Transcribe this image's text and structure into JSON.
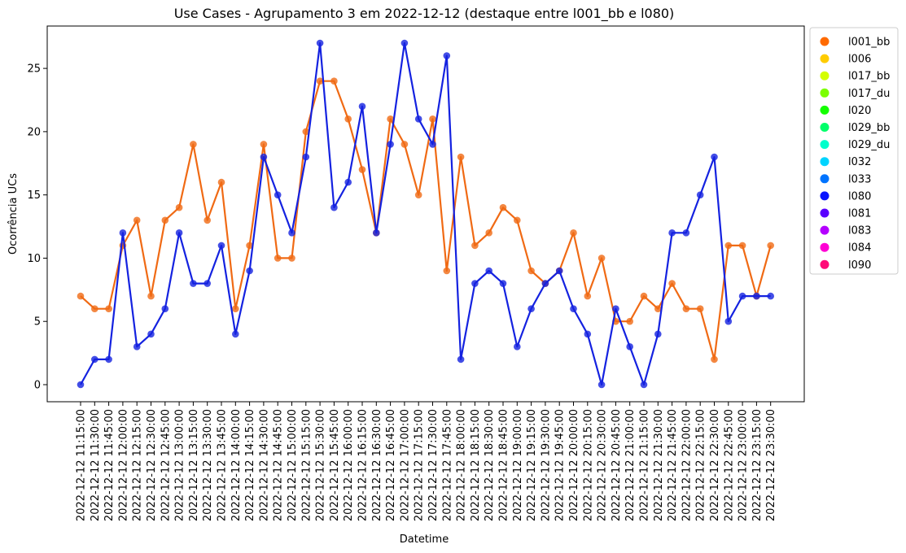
{
  "chart_data": {
    "type": "line",
    "title": "Use Cases - Agrupamento 3 em 2022-12-12 (destaque entre l001_bb e l080)",
    "xlabel": "Datetime",
    "ylabel": "Ocorrência UCs",
    "ylim": [
      -1.35,
      28.35
    ],
    "yticks": [
      0,
      5,
      10,
      15,
      20,
      25
    ],
    "grid": false,
    "legend_position": "outside-right",
    "categories": [
      "2022-12-12 11:15:00",
      "2022-12-12 11:30:00",
      "2022-12-12 11:45:00",
      "2022-12-12 12:00:00",
      "2022-12-12 12:15:00",
      "2022-12-12 12:30:00",
      "2022-12-12 12:45:00",
      "2022-12-12 13:00:00",
      "2022-12-12 13:15:00",
      "2022-12-12 13:30:00",
      "2022-12-12 13:45:00",
      "2022-12-12 14:00:00",
      "2022-12-12 14:15:00",
      "2022-12-12 14:30:00",
      "2022-12-12 14:45:00",
      "2022-12-12 15:00:00",
      "2022-12-12 15:15:00",
      "2022-12-12 15:30:00",
      "2022-12-12 15:45:00",
      "2022-12-12 16:00:00",
      "2022-12-12 16:15:00",
      "2022-12-12 16:30:00",
      "2022-12-12 16:45:00",
      "2022-12-12 17:00:00",
      "2022-12-12 17:15:00",
      "2022-12-12 17:30:00",
      "2022-12-12 17:45:00",
      "2022-12-12 18:00:00",
      "2022-12-12 18:15:00",
      "2022-12-12 18:30:00",
      "2022-12-12 18:45:00",
      "2022-12-12 19:00:00",
      "2022-12-12 19:15:00",
      "2022-12-12 19:30:00",
      "2022-12-12 19:45:00",
      "2022-12-12 20:00:00",
      "2022-12-12 20:15:00",
      "2022-12-12 20:30:00",
      "2022-12-12 20:45:00",
      "2022-12-12 21:00:00",
      "2022-12-12 21:15:00",
      "2022-12-12 21:30:00",
      "2022-12-12 21:45:00",
      "2022-12-12 22:00:00",
      "2022-12-12 22:15:00",
      "2022-12-12 22:30:00",
      "2022-12-12 22:45:00",
      "2022-12-12 23:00:00",
      "2022-12-12 23:15:00",
      "2022-12-12 23:30:00"
    ],
    "series": [
      {
        "name": "l001_bb",
        "color": "#f06a14",
        "values": [
          7,
          6,
          6,
          11,
          13,
          7,
          13,
          14,
          19,
          13,
          16,
          6,
          11,
          19,
          10,
          10,
          20,
          24,
          24,
          21,
          17,
          12,
          21,
          19,
          15,
          21,
          9,
          18,
          11,
          12,
          14,
          13,
          9,
          8,
          9,
          12,
          7,
          10,
          5,
          5,
          7,
          6,
          8,
          6,
          6,
          2,
          11,
          11,
          7,
          11
        ]
      },
      {
        "name": "l080",
        "color": "#1422e0",
        "values": [
          0,
          2,
          2,
          12,
          3,
          4,
          6,
          12,
          8,
          8,
          11,
          4,
          9,
          18,
          15,
          12,
          18,
          27,
          14,
          16,
          22,
          12,
          19,
          27,
          21,
          19,
          26,
          2,
          8,
          9,
          8,
          3,
          6,
          8,
          9,
          6,
          4,
          0,
          6,
          3,
          0,
          4,
          12,
          12,
          15,
          18,
          5,
          7,
          7,
          7
        ]
      }
    ],
    "legend": [
      {
        "label": "l001_bb",
        "color": "#ff6a00"
      },
      {
        "label": "l006",
        "color": "#ffcc00"
      },
      {
        "label": "l017_bb",
        "color": "#d4ff00"
      },
      {
        "label": "l017_du",
        "color": "#7cff00"
      },
      {
        "label": "l020",
        "color": "#14ff00"
      },
      {
        "label": "l029_bb",
        "color": "#00ff6a"
      },
      {
        "label": "l029_du",
        "color": "#00ffcc"
      },
      {
        "label": "l032",
        "color": "#00d4ff"
      },
      {
        "label": "l033",
        "color": "#0074ff"
      },
      {
        "label": "l080",
        "color": "#0a14ff"
      },
      {
        "label": "l081",
        "color": "#5a00ff"
      },
      {
        "label": "l083",
        "color": "#b400ff"
      },
      {
        "label": "l084",
        "color": "#ff00d4"
      },
      {
        "label": "l090",
        "color": "#ff0a78"
      }
    ]
  }
}
